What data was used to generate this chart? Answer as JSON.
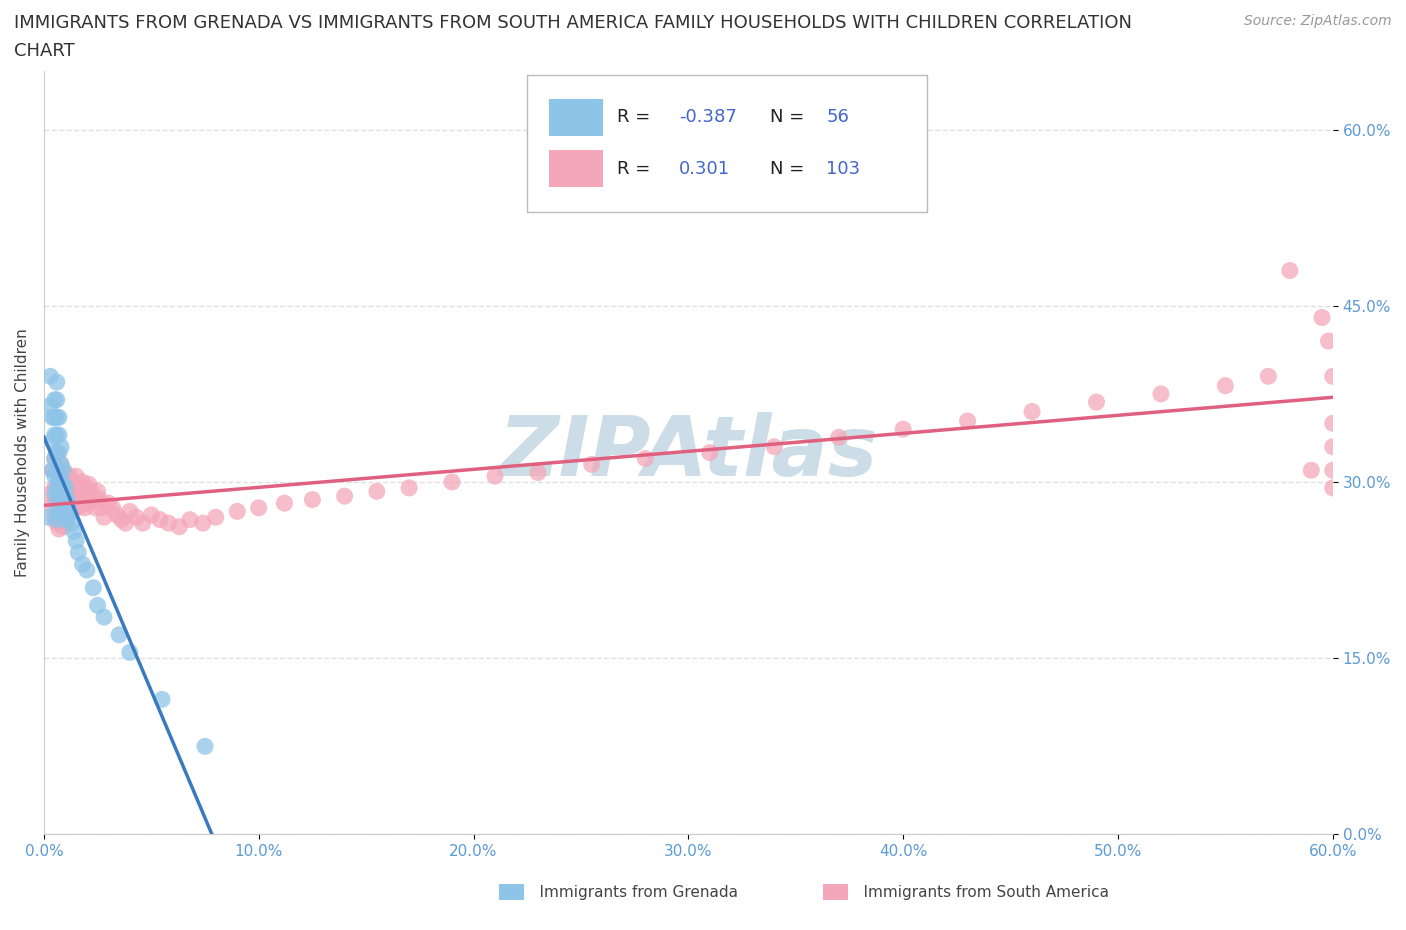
{
  "title_line1": "IMMIGRANTS FROM GRENADA VS IMMIGRANTS FROM SOUTH AMERICA FAMILY HOUSEHOLDS WITH CHILDREN CORRELATION",
  "title_line2": "CHART",
  "source_text": "Source: ZipAtlas.com",
  "ylabel": "Family Households with Children",
  "xlim": [
    0.0,
    0.6
  ],
  "ylim": [
    0.0,
    0.65
  ],
  "xticks": [
    0.0,
    0.1,
    0.2,
    0.3,
    0.4,
    0.5,
    0.6
  ],
  "xticklabels": [
    "0.0%",
    "10.0%",
    "20.0%",
    "30.0%",
    "40.0%",
    "50.0%",
    "60.0%"
  ],
  "yticks": [
    0.0,
    0.15,
    0.3,
    0.45,
    0.6
  ],
  "yticklabels": [
    "0.0%",
    "15.0%",
    "30.0%",
    "45.0%",
    "60.0%"
  ],
  "grenada_color": "#8ec4e8",
  "south_america_color": "#f4a7b9",
  "grenada_line_color": "#3a7abf",
  "south_america_line_color": "#e06080",
  "grenada_R": -0.387,
  "grenada_N": 56,
  "south_america_R": 0.301,
  "south_america_N": 103,
  "watermark": "ZIPAtlas",
  "watermark_color": "#ccdde8",
  "background_color": "#ffffff",
  "grid_color": "#e0e0e0",
  "title_fontsize": 13,
  "axis_label_fontsize": 11,
  "tick_fontsize": 11,
  "legend_fontsize": 13,
  "tick_color": "#5b9bd5",
  "grenada_x": [
    0.002,
    0.003,
    0.003,
    0.004,
    0.004,
    0.004,
    0.005,
    0.005,
    0.005,
    0.005,
    0.005,
    0.005,
    0.006,
    0.006,
    0.006,
    0.006,
    0.006,
    0.006,
    0.006,
    0.006,
    0.006,
    0.007,
    0.007,
    0.007,
    0.007,
    0.007,
    0.007,
    0.007,
    0.008,
    0.008,
    0.008,
    0.008,
    0.008,
    0.009,
    0.009,
    0.009,
    0.009,
    0.01,
    0.01,
    0.01,
    0.011,
    0.011,
    0.012,
    0.013,
    0.014,
    0.015,
    0.016,
    0.018,
    0.02,
    0.023,
    0.025,
    0.028,
    0.035,
    0.04,
    0.055,
    0.075
  ],
  "grenada_y": [
    0.27,
    0.39,
    0.365,
    0.355,
    0.335,
    0.31,
    0.37,
    0.355,
    0.34,
    0.32,
    0.305,
    0.29,
    0.385,
    0.37,
    0.355,
    0.34,
    0.325,
    0.31,
    0.295,
    0.28,
    0.268,
    0.355,
    0.34,
    0.325,
    0.31,
    0.3,
    0.29,
    0.275,
    0.33,
    0.315,
    0.3,
    0.29,
    0.275,
    0.31,
    0.298,
    0.285,
    0.272,
    0.295,
    0.28,
    0.268,
    0.285,
    0.27,
    0.275,
    0.265,
    0.258,
    0.25,
    0.24,
    0.23,
    0.225,
    0.21,
    0.195,
    0.185,
    0.17,
    0.155,
    0.115,
    0.075
  ],
  "south_america_x": [
    0.003,
    0.004,
    0.004,
    0.005,
    0.005,
    0.005,
    0.006,
    0.006,
    0.006,
    0.007,
    0.007,
    0.007,
    0.007,
    0.008,
    0.008,
    0.008,
    0.008,
    0.009,
    0.009,
    0.009,
    0.009,
    0.01,
    0.01,
    0.01,
    0.01,
    0.011,
    0.011,
    0.011,
    0.012,
    0.012,
    0.012,
    0.013,
    0.013,
    0.013,
    0.014,
    0.014,
    0.015,
    0.015,
    0.015,
    0.016,
    0.016,
    0.017,
    0.017,
    0.018,
    0.018,
    0.019,
    0.02,
    0.02,
    0.021,
    0.021,
    0.022,
    0.023,
    0.024,
    0.025,
    0.026,
    0.027,
    0.028,
    0.03,
    0.032,
    0.034,
    0.036,
    0.038,
    0.04,
    0.043,
    0.046,
    0.05,
    0.054,
    0.058,
    0.063,
    0.068,
    0.074,
    0.08,
    0.09,
    0.1,
    0.112,
    0.125,
    0.14,
    0.155,
    0.17,
    0.19,
    0.21,
    0.23,
    0.255,
    0.28,
    0.31,
    0.34,
    0.37,
    0.4,
    0.43,
    0.46,
    0.49,
    0.52,
    0.55,
    0.57,
    0.58,
    0.59,
    0.595,
    0.598,
    0.6,
    0.6,
    0.6,
    0.6,
    0.6
  ],
  "south_america_y": [
    0.29,
    0.31,
    0.28,
    0.32,
    0.295,
    0.27,
    0.31,
    0.285,
    0.265,
    0.305,
    0.29,
    0.275,
    0.26,
    0.315,
    0.3,
    0.285,
    0.268,
    0.305,
    0.292,
    0.278,
    0.262,
    0.308,
    0.295,
    0.28,
    0.265,
    0.3,
    0.288,
    0.272,
    0.305,
    0.292,
    0.278,
    0.3,
    0.288,
    0.275,
    0.295,
    0.282,
    0.305,
    0.292,
    0.278,
    0.298,
    0.285,
    0.295,
    0.28,
    0.3,
    0.287,
    0.278,
    0.295,
    0.282,
    0.298,
    0.285,
    0.292,
    0.285,
    0.278,
    0.292,
    0.285,
    0.278,
    0.27,
    0.282,
    0.278,
    0.272,
    0.268,
    0.265,
    0.275,
    0.27,
    0.265,
    0.272,
    0.268,
    0.265,
    0.262,
    0.268,
    0.265,
    0.27,
    0.275,
    0.278,
    0.282,
    0.285,
    0.288,
    0.292,
    0.295,
    0.3,
    0.305,
    0.308,
    0.315,
    0.32,
    0.325,
    0.33,
    0.338,
    0.345,
    0.352,
    0.36,
    0.368,
    0.375,
    0.382,
    0.39,
    0.48,
    0.31,
    0.44,
    0.42,
    0.39,
    0.35,
    0.33,
    0.31,
    0.295
  ]
}
